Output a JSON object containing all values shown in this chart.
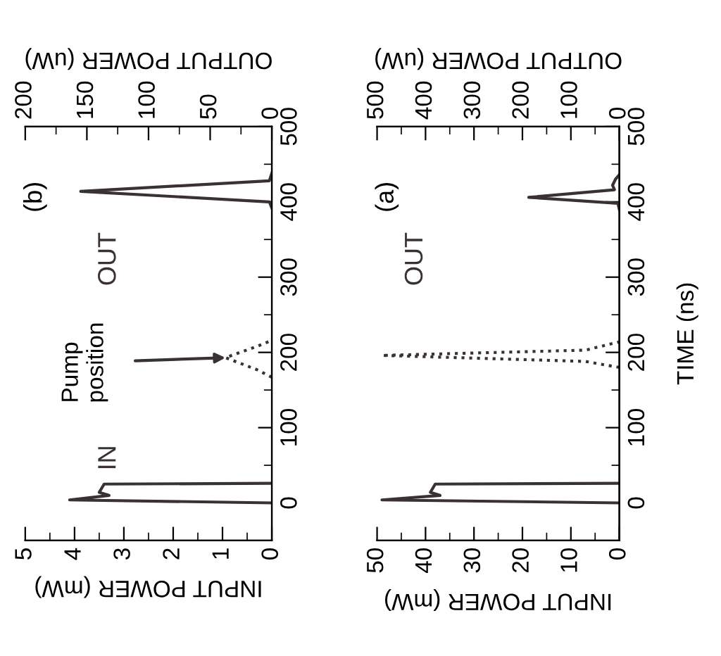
{
  "chart_data": [
    {
      "type": "line",
      "title": "(b)",
      "xlabel": "INPUT POWER (mW)",
      "x2label": "OUTPUT POWER (uW)",
      "ylim": [
        -50,
        500
      ],
      "yticks": [
        0,
        {
          "value": 50,
          "label": null
        },
        100,
        {
          "value": 150,
          "label": null
        },
        200,
        {
          "value": 250,
          "label": null
        },
        300,
        {
          "value": 350,
          "label": null
        },
        400,
        {
          "value": 450,
          "label": null
        },
        500
      ],
      "xlim": [
        5,
        0
      ],
      "xticks": [
        0,
        {
          "value": 0.5,
          "label": null
        },
        1,
        {
          "value": 1.5,
          "label": null
        },
        2,
        {
          "value": 2.5,
          "label": null
        },
        3,
        {
          "value": 3.5,
          "label": null
        },
        4,
        {
          "value": 4.5,
          "label": null
        },
        5
      ],
      "x2lim": [
        200,
        0
      ],
      "x2ticks": [
        0,
        {
          "value": 25,
          "label": null
        },
        50,
        {
          "value": 75,
          "label": null
        },
        100,
        {
          "value": 125,
          "label": null
        },
        150,
        {
          "value": 175,
          "label": null
        },
        200
      ],
      "series": [
        {
          "name": "IN",
          "color": "#3a3232",
          "line_style": "solid",
          "x": [
            0,
            4.1,
            3.3,
            3.5,
            3.4,
            0
          ],
          "values": [
            0,
            4,
            10,
            14,
            25,
            26
          ]
        },
        {
          "color": "#3a3232",
          "line_style": "dotted",
          "x": [
            0,
            0.3,
            0.94,
            0.3,
            0
          ],
          "values": [
            167,
            177,
            193,
            208,
            216
          ]
        },
        {
          "name": "OUT",
          "color": "#3a3232",
          "line_style": "solid",
          "axis": "x2",
          "x": [
            0,
            2,
            155,
            2,
            0
          ],
          "values": [
            392,
            400,
            414,
            428,
            438
          ]
        }
      ],
      "annotations": [
        "Pump\nposition"
      ]
    },
    {
      "type": "line",
      "title": "(a)",
      "xlabel": "INPUT POWER (mW)",
      "x2label": "OUTPUT POWER (uW)",
      "ylabel": "TIME (ns)",
      "ylim": [
        -50,
        500
      ],
      "yticks": [
        0,
        {
          "value": 50,
          "label": null
        },
        100,
        {
          "value": 150,
          "label": null
        },
        200,
        {
          "value": 250,
          "label": null
        },
        300,
        {
          "value": 350,
          "label": null
        },
        400,
        {
          "value": 450,
          "label": null
        },
        500
      ],
      "xlim": [
        50,
        0
      ],
      "xticks": [
        0,
        {
          "value": 5,
          "label": null
        },
        10,
        {
          "value": 15,
          "label": null
        },
        20,
        {
          "value": 25,
          "label": null
        },
        30,
        {
          "value": 35,
          "label": null
        },
        40,
        {
          "value": 45,
          "label": null
        },
        50
      ],
      "x2lim": [
        500,
        0
      ],
      "x2ticks": [
        0,
        {
          "value": 50,
          "label": null
        },
        100,
        {
          "value": 150,
          "label": null
        },
        200,
        {
          "value": 250,
          "label": null
        },
        300,
        {
          "value": 350,
          "label": null
        },
        400,
        {
          "value": 450,
          "label": null
        },
        500
      ],
      "series": [
        {
          "color": "#3a3232",
          "line_style": "solid",
          "x": [
            0,
            49,
            37,
            39,
            38,
            0
          ],
          "values": [
            0,
            4,
            10,
            14,
            25,
            26
          ]
        },
        {
          "color": "#3a3232",
          "line_style": "dotted",
          "x": [
            0,
            7,
            49,
            7,
            0
          ],
          "values": [
            180,
            188,
            196,
            203,
            214
          ]
        },
        {
          "name": "OUT",
          "color": "#3a3232",
          "line_style": "solid",
          "axis": "x2",
          "x": [
            0,
            3,
            187,
            10,
            14,
            8,
            0
          ],
          "values": [
            390,
            398,
            406,
            416,
            422,
            430,
            436
          ]
        }
      ]
    }
  ]
}
